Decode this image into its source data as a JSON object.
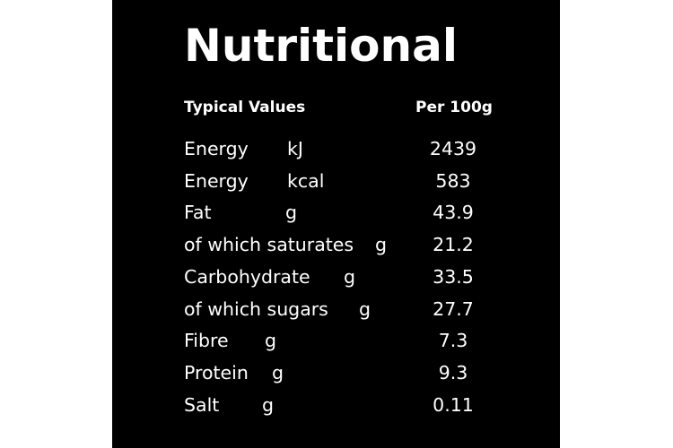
{
  "title": "Nutritional",
  "header": {
    "left": "Typical Values",
    "right": "Per 100g"
  },
  "rows": [
    {
      "label": "Energy",
      "unit": "kJ",
      "value": "2439"
    },
    {
      "label": "Energy",
      "unit": "kcal",
      "value": "583"
    },
    {
      "label": "Fat",
      "unit": "g",
      "value": "43.9"
    },
    {
      "label": "of which saturates",
      "unit": "g",
      "value": "21.2"
    },
    {
      "label": "Carbohydrate",
      "unit": "g",
      "value": "33.5"
    },
    {
      "label": "of which sugars",
      "unit": "g",
      "value": "27.7"
    },
    {
      "label": "Fibre",
      "unit": "g",
      "value": "7.3"
    },
    {
      "label": "Protein",
      "unit": "g",
      "value": "9.3"
    },
    {
      "label": "Salt",
      "unit": "g",
      "value": "0.11"
    }
  ],
  "colors": {
    "background": "#000000",
    "text": "#ffffff"
  }
}
